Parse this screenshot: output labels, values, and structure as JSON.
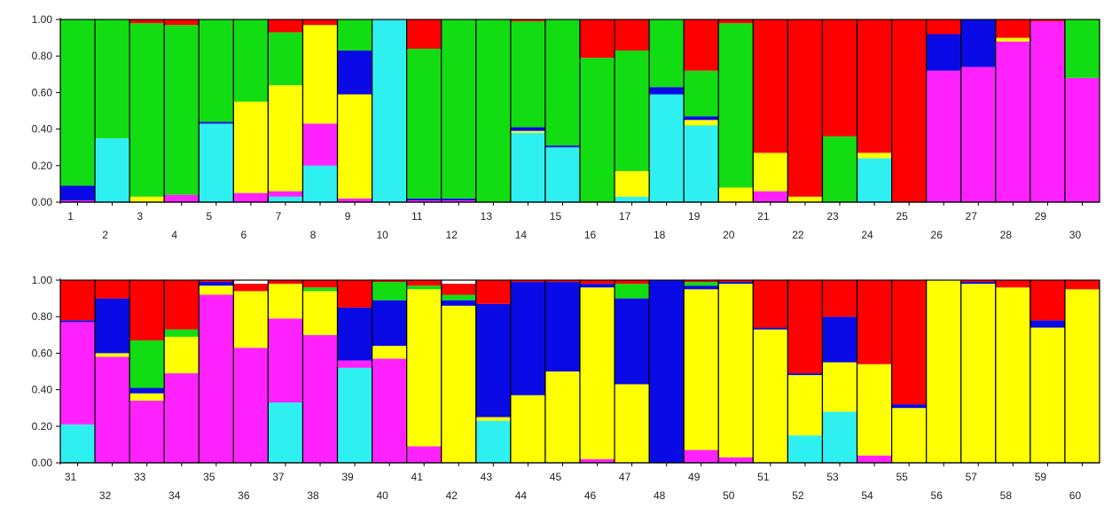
{
  "chart_data": {
    "type": "bar",
    "stacked": true,
    "title": "",
    "xlabel": "",
    "ylabel": "",
    "ylim": [
      0,
      1
    ],
    "y_ticks": [
      "0.00",
      "0.20",
      "0.40",
      "0.60",
      "0.80",
      "1.00"
    ],
    "grid": false,
    "legend": "none",
    "cluster_colors": {
      "cyan": "#2ff0f0",
      "magenta": "#ff22ff",
      "yellow": "#ffff00",
      "blue": "#0a0ae6",
      "green": "#12dc12",
      "red": "#ff0000"
    },
    "stack_order": [
      "cyan",
      "magenta",
      "yellow",
      "blue",
      "green",
      "red"
    ],
    "panels": [
      {
        "categories": [
          "1",
          "2",
          "3",
          "4",
          "5",
          "6",
          "7",
          "8",
          "9",
          "10",
          "11",
          "12",
          "13",
          "14",
          "15",
          "16",
          "17",
          "18",
          "19",
          "20",
          "21",
          "22",
          "23",
          "24",
          "25",
          "26",
          "27",
          "28",
          "29",
          "30"
        ],
        "series": [
          {
            "values": [
              0.0,
              0.35,
              0.0,
              0.0,
              0.43,
              0.0,
              0.03,
              0.2,
              0.0,
              1.0,
              0.0,
              0.0,
              0.0,
              0.38,
              0.3,
              0.0,
              0.03,
              0.59,
              0.42,
              0.0,
              0.0,
              0.0,
              0.0,
              0.24,
              0.0,
              0.0,
              0.0,
              0.0,
              0.0,
              0.0
            ]
          },
          {
            "values": [
              0.01,
              0.0,
              0.0,
              0.04,
              0.0,
              0.05,
              0.03,
              0.23,
              0.02,
              0.0,
              0.01,
              0.01,
              0.0,
              0.0,
              0.0,
              0.0,
              0.0,
              0.0,
              0.0,
              0.0,
              0.06,
              0.0,
              0.0,
              0.0,
              0.0,
              0.72,
              0.74,
              0.88,
              0.99,
              0.68
            ]
          },
          {
            "values": [
              0.0,
              0.0,
              0.03,
              0.0,
              0.0,
              0.5,
              0.58,
              0.54,
              0.57,
              0.0,
              0.0,
              0.0,
              0.0,
              0.01,
              0.0,
              0.0,
              0.14,
              0.0,
              0.03,
              0.08,
              0.21,
              0.03,
              0.0,
              0.03,
              0.0,
              0.0,
              0.0,
              0.02,
              0.0,
              0.0
            ]
          },
          {
            "values": [
              0.08,
              0.0,
              0.0,
              0.0,
              0.01,
              0.0,
              0.0,
              0.0,
              0.24,
              0.0,
              0.01,
              0.01,
              0.0,
              0.02,
              0.01,
              0.0,
              0.0,
              0.04,
              0.02,
              0.0,
              0.0,
              0.0,
              0.0,
              0.0,
              0.0,
              0.2,
              0.26,
              0.0,
              0.0,
              0.0
            ]
          },
          {
            "values": [
              0.91,
              0.65,
              0.95,
              0.93,
              0.56,
              0.45,
              0.29,
              0.0,
              0.17,
              0.0,
              0.82,
              0.98,
              1.0,
              0.58,
              0.69,
              0.79,
              0.66,
              0.37,
              0.25,
              0.9,
              0.0,
              0.0,
              0.36,
              0.0,
              0.0,
              0.0,
              0.0,
              0.0,
              0.0,
              0.32
            ]
          },
          {
            "values": [
              0.0,
              0.0,
              0.02,
              0.03,
              0.0,
              0.0,
              0.07,
              0.03,
              0.0,
              0.0,
              0.16,
              0.0,
              0.0,
              0.01,
              0.0,
              0.21,
              0.17,
              0.0,
              0.28,
              0.02,
              0.73,
              0.97,
              0.64,
              0.73,
              1.0,
              0.08,
              0.0,
              0.1,
              0.01,
              0.0
            ]
          }
        ]
      },
      {
        "categories": [
          "31",
          "32",
          "33",
          "34",
          "35",
          "36",
          "37",
          "38",
          "39",
          "40",
          "41",
          "42",
          "43",
          "44",
          "45",
          "46",
          "47",
          "48",
          "49",
          "50",
          "51",
          "52",
          "53",
          "54",
          "55",
          "56",
          "57",
          "58",
          "59",
          "60"
        ],
        "series": [
          {
            "values": [
              0.21,
              0.0,
              0.0,
              0.0,
              0.0,
              0.0,
              0.33,
              0.0,
              0.52,
              0.0,
              0.0,
              0.0,
              0.23,
              0.0,
              0.0,
              0.0,
              0.0,
              0.0,
              0.0,
              0.0,
              0.0,
              0.15,
              0.28,
              0.0,
              0.0,
              0.0,
              0.0,
              0.0,
              0.0,
              0.0
            ]
          },
          {
            "values": [
              0.56,
              0.58,
              0.34,
              0.49,
              0.92,
              0.63,
              0.46,
              0.7,
              0.04,
              0.57,
              0.09,
              0.0,
              0.0,
              0.0,
              0.0,
              0.02,
              0.0,
              0.0,
              0.07,
              0.03,
              0.0,
              0.0,
              0.0,
              0.04,
              0.0,
              0.0,
              0.0,
              0.0,
              0.0,
              0.0
            ]
          },
          {
            "values": [
              0.0,
              0.02,
              0.04,
              0.2,
              0.05,
              0.31,
              0.19,
              0.24,
              0.0,
              0.07,
              0.86,
              0.86,
              0.02,
              0.37,
              0.5,
              0.94,
              0.43,
              0.0,
              0.88,
              0.95,
              0.73,
              0.33,
              0.27,
              0.5,
              0.3,
              1.0,
              0.98,
              0.96,
              0.74,
              0.95
            ]
          },
          {
            "values": [
              0.01,
              0.3,
              0.03,
              0.0,
              0.02,
              0.0,
              0.0,
              0.0,
              0.29,
              0.25,
              0.0,
              0.03,
              0.62,
              0.62,
              0.49,
              0.02,
              0.47,
              1.0,
              0.02,
              0.01,
              0.01,
              0.01,
              0.25,
              0.0,
              0.02,
              0.0,
              0.01,
              0.0,
              0.04,
              0.0
            ]
          },
          {
            "values": [
              0.0,
              0.0,
              0.26,
              0.04,
              0.0,
              0.0,
              0.0,
              0.02,
              0.0,
              0.1,
              0.02,
              0.03,
              0.0,
              0.0,
              0.0,
              0.0,
              0.08,
              0.0,
              0.02,
              0.0,
              0.0,
              0.0,
              0.0,
              0.0,
              0.0,
              0.0,
              0.0,
              0.0,
              0.0,
              0.0
            ]
          },
          {
            "values": [
              0.22,
              0.1,
              0.33,
              0.27,
              0.01,
              0.04,
              0.02,
              0.04,
              0.15,
              0.01,
              0.03,
              0.06,
              0.13,
              0.01,
              0.01,
              0.02,
              0.02,
              0.0,
              0.01,
              0.01,
              0.26,
              0.51,
              0.2,
              0.46,
              0.68,
              0.0,
              0.01,
              0.04,
              0.22,
              0.05
            ]
          }
        ]
      }
    ]
  }
}
